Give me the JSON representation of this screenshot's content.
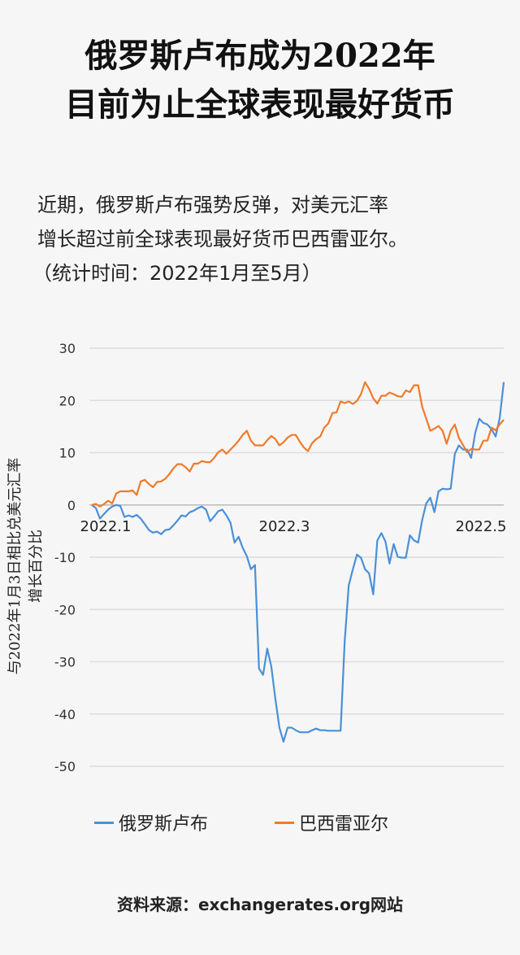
{
  "title": [
    "俄罗斯卢布成为2022年",
    "目前为止全球表现最好货币"
  ],
  "subtitle": [
    "近期，俄罗斯卢布强势反弹，对美元汇率",
    "增长超过前全球表现最好货币巴西雷亚尔。",
    "（统计时间：2022年1月至5月）"
  ],
  "source": "资料来源：exchangerates.org网站",
  "chart_data": {
    "type": "line",
    "ylabel": "与2022年1月3日相比兑美元汇率增长百分比",
    "ylim": [
      -50,
      30
    ],
    "yticks": [
      "30",
      "20",
      "10",
      "0",
      "-10",
      "-20",
      "-30",
      "-40",
      "-50"
    ],
    "xticks": [
      "2022.1",
      "2022.3",
      "2022.5"
    ],
    "grid": true,
    "legend": "bottom",
    "series": [
      {
        "name": "俄罗斯卢布",
        "color": "#4a90d9",
        "values": [
          0,
          -0.6,
          -2.6,
          -1.7,
          -0.9,
          -0.3,
          0,
          -0.2,
          -2.3,
          -2.0,
          -2.3,
          -1.9,
          -2.6,
          -3.7,
          -4.8,
          -5.3,
          -5.1,
          -5.6,
          -4.8,
          -4.7,
          -3.9,
          -3.0,
          -2.0,
          -2.2,
          -1.4,
          -1.1,
          -0.6,
          -0.3,
          -0.9,
          -3.1,
          -2.2,
          -1.2,
          -0.9,
          -2.0,
          -3.4,
          -7.2,
          -6.1,
          -8.2,
          -9.8,
          -12.3,
          -11.5,
          -31.3,
          -32.5,
          -27.5,
          -30.9,
          -37.1,
          -42.6,
          -45.3,
          -42.6,
          -42.6,
          -43.1,
          -43.5,
          -43.5,
          -43.5,
          -43.1,
          -42.8,
          -43.1,
          -43.1,
          -43.2,
          -43.2,
          -43.2,
          -43.2,
          -26.2,
          -15.4,
          -12.3,
          -9.5,
          -10.1,
          -12.3,
          -13.1,
          -17.1,
          -6.8,
          -5.4,
          -7.0,
          -11.2,
          -7.5,
          -9.9,
          -10.1,
          -10.1,
          -5.8,
          -6.8,
          -7.2,
          -2.9,
          0.3,
          1.4,
          -1.4,
          2.6,
          3.1,
          3.0,
          3.1,
          9.8,
          11.4,
          10.6,
          10.6,
          9.0,
          13.8,
          16.5,
          15.7,
          15.4,
          14.5,
          13.1,
          16.6,
          23.5
        ]
      },
      {
        "name": "巴西雷亚尔",
        "color": "#f07a2a",
        "values": [
          0,
          0.2,
          -0.3,
          0.2,
          0.8,
          0.3,
          2.2,
          2.6,
          2.6,
          2.6,
          2.8,
          1.9,
          4.5,
          4.8,
          4.0,
          3.4,
          4.4,
          4.5,
          5.0,
          5.9,
          7.0,
          7.8,
          7.8,
          7.2,
          6.4,
          7.9,
          7.9,
          8.4,
          8.2,
          8.2,
          9.0,
          10.1,
          10.6,
          9.8,
          10.6,
          11.4,
          12.3,
          13.4,
          14.2,
          12.3,
          11.4,
          11.4,
          11.4,
          12.4,
          13.2,
          12.6,
          11.4,
          12.0,
          12.9,
          13.4,
          13.4,
          12.1,
          11.0,
          10.3,
          11.8,
          12.6,
          13.1,
          14.8,
          15.6,
          17.6,
          17.7,
          19.8,
          19.5,
          19.8,
          19.3,
          19.9,
          21.2,
          23.5,
          22.2,
          20.4,
          19.4,
          20.9,
          20.9,
          21.5,
          21.2,
          20.8,
          20.7,
          21.9,
          21.6,
          22.9,
          22.9,
          18.8,
          16.5,
          14.2,
          14.6,
          15.1,
          14.2,
          11.7,
          14.2,
          15.4,
          12.8,
          11.5,
          10.1,
          10.7,
          10.6,
          10.6,
          12.3,
          12.3,
          14.8,
          14.3,
          15.4,
          16.3
        ]
      }
    ]
  }
}
